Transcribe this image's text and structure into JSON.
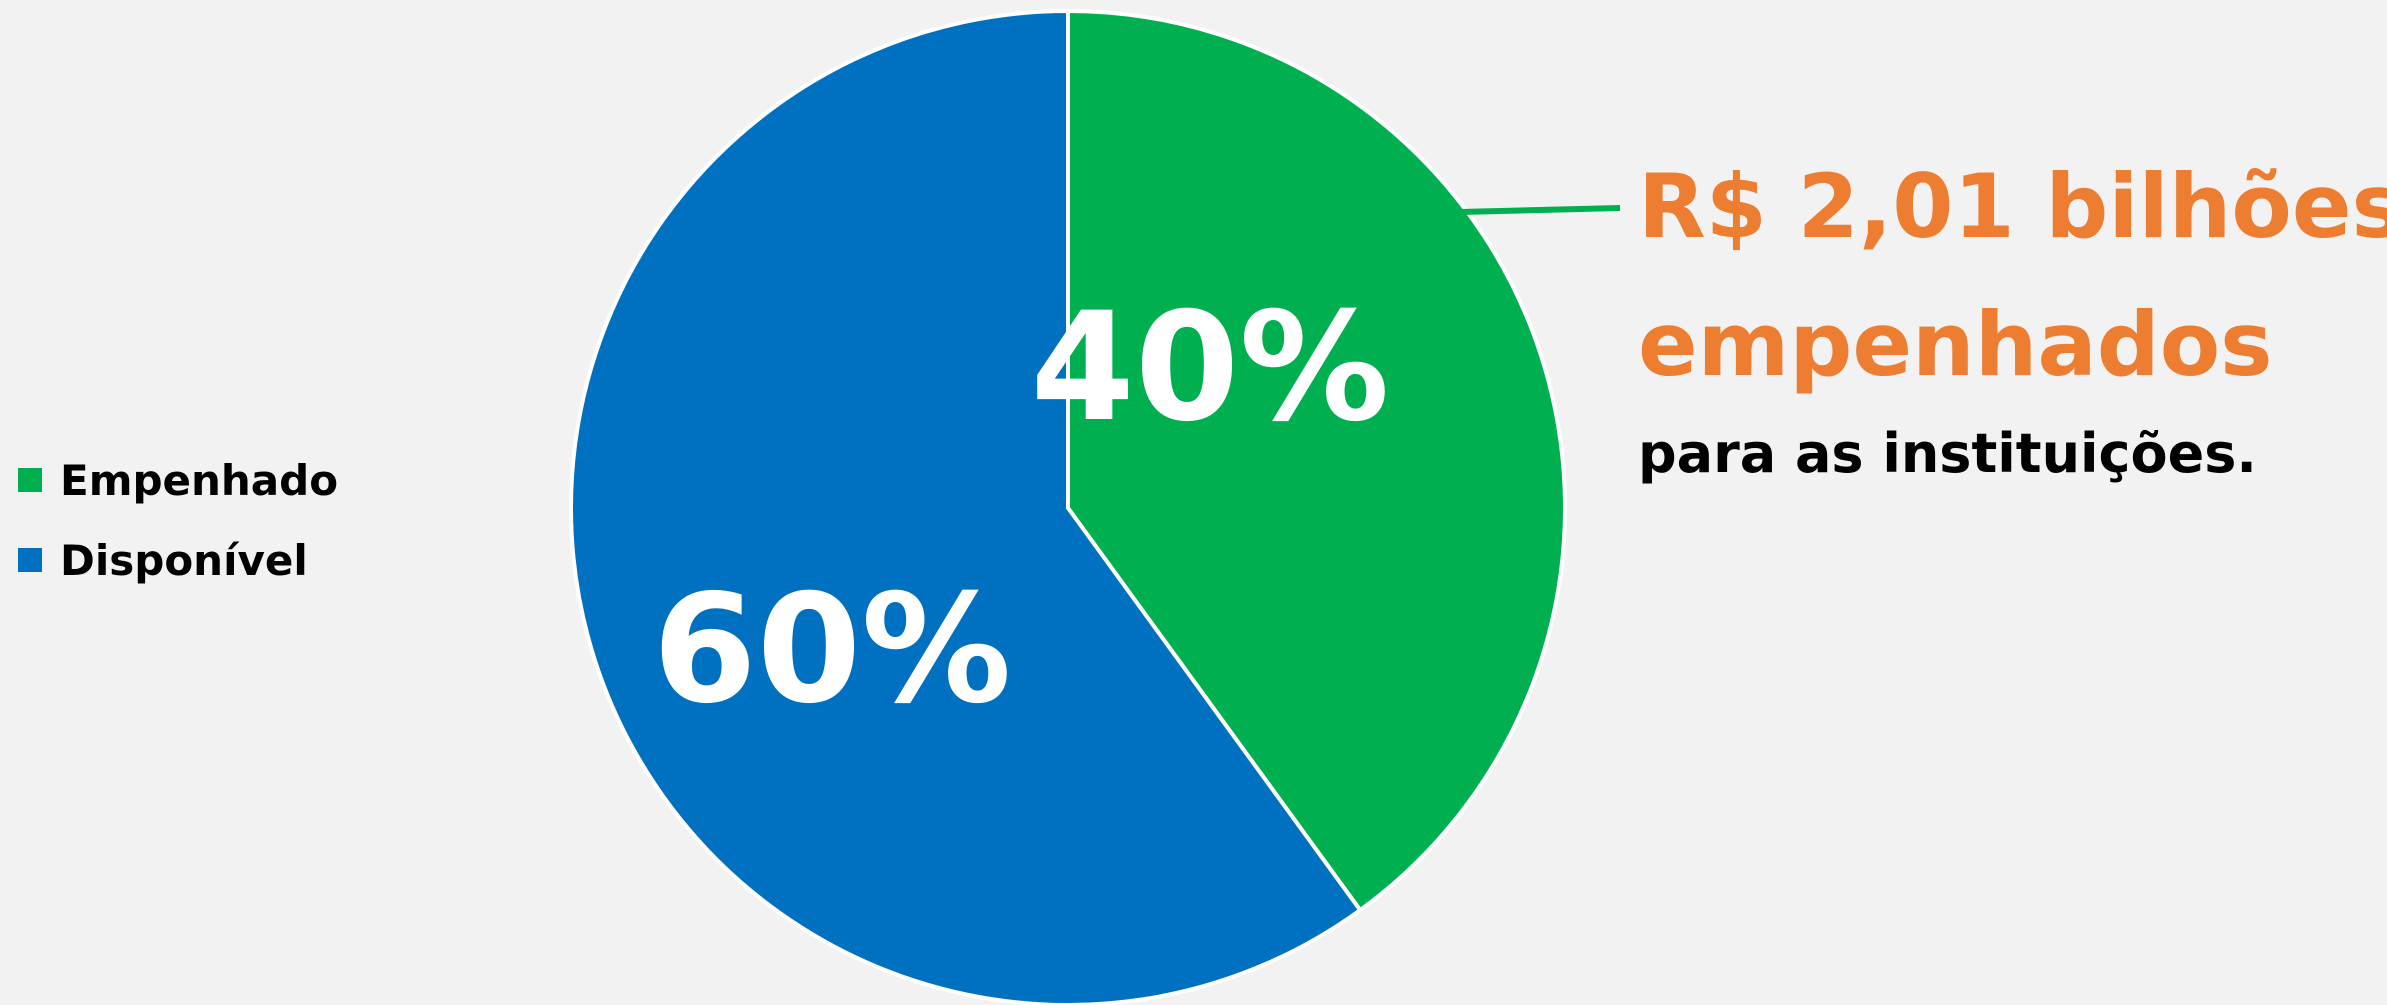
{
  "chart_data": {
    "type": "pie",
    "title": "",
    "categories": [
      "Empenhado",
      "Disponível"
    ],
    "values": [
      40,
      60
    ],
    "labels": [
      "40%",
      "60%"
    ],
    "colors": [
      "#00b050",
      "#0070c0"
    ],
    "legend_position": "left",
    "start_angle_deg": 0,
    "direction": "clockwise"
  },
  "legend": {
    "items": [
      {
        "label": "Empenhado",
        "color": "#00b050"
      },
      {
        "label": "Disponível",
        "color": "#0070c0"
      }
    ]
  },
  "callout": {
    "line1": "R$ 2,01 bilhões",
    "line2": "empenhados",
    "line3": "para as instituições.",
    "accent_color": "#ed7d31",
    "leader_color": "#00b050"
  }
}
